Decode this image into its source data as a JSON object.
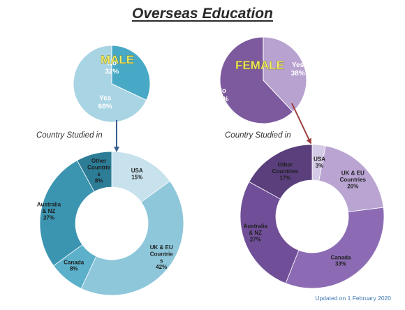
{
  "title": "Overseas Education",
  "subtitle_male": "Country Studied in",
  "subtitle_female": "Country Studied in",
  "footer": "Updated on 1 February 2020",
  "colors": {
    "male_yes": "#a9d4e3",
    "male_no": "#47a9c5",
    "female_yes": "#b8a2cf",
    "female_no": "#7d5a9e",
    "male_arrow": "#3b5f8f",
    "female_arrow": "#9c3b3b",
    "title_yellow": "#f6f060"
  },
  "chart_data": [
    {
      "type": "pie",
      "title": "MALE",
      "slices": [
        {
          "label_lines": [
            "Yes",
            "68%"
          ],
          "value": 68
        },
        {
          "label_lines": [
            "No",
            "32%"
          ],
          "value": 32
        }
      ]
    },
    {
      "type": "pie",
      "title": "FEMALE",
      "slices": [
        {
          "label_lines": [
            "Yes",
            "38%"
          ],
          "value": 38
        },
        {
          "label_lines": [
            "No",
            "62%"
          ],
          "value": 62
        }
      ]
    },
    {
      "type": "donut",
      "title": "Country Studied in",
      "slices": [
        {
          "label_lines": [
            "USA",
            "15%"
          ],
          "value": 15,
          "color": "#c7e2ec"
        },
        {
          "label_lines": [
            "UK & EU",
            "Countrie",
            "s",
            "42%"
          ],
          "value": 42,
          "color": "#8ec7da"
        },
        {
          "label_lines": [
            "Canada",
            "8%"
          ],
          "value": 8,
          "color": "#5cb0c9"
        },
        {
          "label_lines": [
            "Australia",
            "& NZ",
            "27%"
          ],
          "value": 27,
          "color": "#3b95b1"
        },
        {
          "label_lines": [
            "Other",
            "Countrie",
            "s",
            "8%"
          ],
          "value": 8,
          "color": "#2d7d97"
        }
      ]
    },
    {
      "type": "donut",
      "title": "Country Studied in",
      "slices": [
        {
          "label_lines": [
            "USA",
            "3%"
          ],
          "value": 3,
          "color": "#d6cbe6"
        },
        {
          "label_lines": [
            "UK & EU",
            "Countries",
            "20%"
          ],
          "value": 20,
          "color": "#b9a4d2"
        },
        {
          "label_lines": [
            "Canada",
            "33%"
          ],
          "value": 33,
          "color": "#8c6bb4"
        },
        {
          "label_lines": [
            "Australia",
            "& NZ",
            "27%"
          ],
          "value": 27,
          "color": "#704f98"
        },
        {
          "label_lines": [
            "Other",
            "Countries",
            "17%"
          ],
          "value": 17,
          "color": "#5a3f7c"
        }
      ]
    }
  ]
}
